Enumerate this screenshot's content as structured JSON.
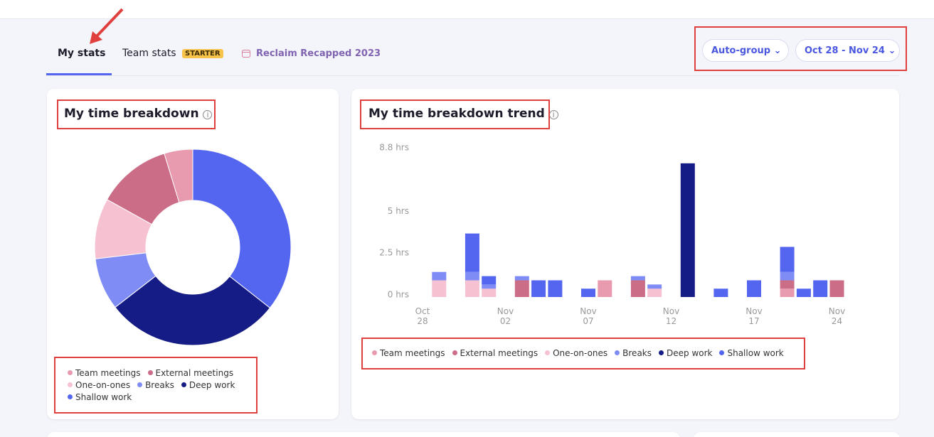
{
  "tabs": {
    "items": [
      "My stats",
      "Team stats",
      "Reclaim Recapped 2023"
    ],
    "badge": "STARTER"
  },
  "controls": {
    "grouping": "Auto-group",
    "date_range": "Oct 28 - Nov 24"
  },
  "chart_data": [
    {
      "type": "pie",
      "title": "My time breakdown",
      "categories": [
        "Team meetings",
        "External meetings",
        "One-on-ones",
        "Breaks",
        "Deep work",
        "Shallow work"
      ],
      "values": [
        4.7,
        12.2,
        10,
        8.6,
        28.9,
        35.6
      ],
      "colors": [
        "#e89aae",
        "#cc6d88",
        "#f6c2d2",
        "#7f8cf5",
        "#161c85",
        "#5465ef"
      ]
    },
    {
      "type": "bar",
      "stacked": true,
      "title": "My time breakdown trend",
      "categories": [
        "Oct 28",
        null,
        null,
        null,
        null,
        "Nov 02",
        null,
        null,
        null,
        null,
        "Nov 07",
        null,
        null,
        null,
        null,
        "Nov 12",
        null,
        null,
        null,
        null,
        "Nov 17",
        null,
        null,
        null,
        null,
        "Nov 24"
      ],
      "series": [
        {
          "name": "Team meetings",
          "color": "#e89aae",
          "values": [
            0,
            0,
            0,
            0,
            0,
            0,
            0,
            0,
            0,
            0,
            0,
            1,
            0,
            0,
            0,
            0,
            0,
            0,
            0,
            0,
            0,
            0,
            0.5,
            0,
            0,
            0
          ]
        },
        {
          "name": "External meetings",
          "color": "#cc6d88",
          "values": [
            0,
            0,
            0,
            0,
            0,
            0,
            1,
            0,
            0,
            0,
            0,
            0,
            0,
            1,
            0,
            0,
            0,
            0,
            0,
            0,
            0,
            0,
            0.5,
            0,
            0,
            1
          ]
        },
        {
          "name": "One-on-ones",
          "color": "#f6c2d2",
          "values": [
            0,
            1,
            0,
            1,
            0.5,
            0,
            0,
            0,
            0,
            0,
            0,
            0,
            0,
            0,
            0.5,
            0,
            0,
            0,
            0,
            0,
            0,
            0,
            0,
            0,
            0,
            0
          ]
        },
        {
          "name": "Breaks",
          "color": "#7f8cf5",
          "values": [
            0,
            0.5,
            0,
            0.5,
            0.25,
            0,
            0.25,
            0,
            0,
            0,
            0,
            0,
            0,
            0.25,
            0.25,
            0,
            0,
            0,
            0,
            0,
            0,
            0,
            0.5,
            0,
            0,
            0
          ]
        },
        {
          "name": "Deep work",
          "color": "#161c85",
          "values": [
            0,
            0,
            0,
            0,
            0,
            0,
            0,
            0,
            0,
            0,
            0,
            0,
            0,
            0,
            0,
            0,
            8,
            0,
            0,
            0,
            0,
            0,
            0,
            0,
            0,
            0
          ]
        },
        {
          "name": "Shallow work",
          "color": "#5465ef",
          "values": [
            0,
            0,
            0,
            2.3,
            0.5,
            0,
            0,
            1,
            1,
            0,
            0.5,
            0,
            0,
            0,
            0,
            0,
            0,
            0,
            0.5,
            0,
            1,
            0,
            1.5,
            0.5,
            1,
            0
          ]
        }
      ],
      "ylim": [
        0,
        8.8
      ],
      "yticks": [
        {
          "value": 0,
          "label": "0 hrs"
        },
        {
          "value": 2.5,
          "label": "2.5 hrs"
        },
        {
          "value": 5,
          "label": "5 hrs"
        },
        {
          "value": 8.8,
          "label": "8.8 hrs"
        }
      ],
      "grid": false
    }
  ]
}
